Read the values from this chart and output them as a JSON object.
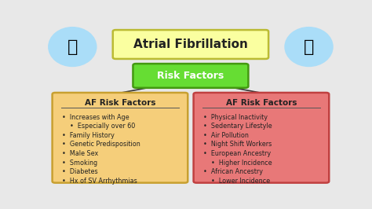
{
  "title": "Atrial Fibrillation",
  "title_box_color": "#FAFFA0",
  "title_box_edge": "#BBBB33",
  "subtitle": "Risk Factors",
  "subtitle_box_color": "#66DD33",
  "subtitle_box_edge": "#449911",
  "background_color": "#E8E8E8",
  "left_box": {
    "title": "AF Risk Factors",
    "bg_color": "#F5CE7A",
    "edge_color": "#C8A030",
    "items": [
      "•  Increases with Age",
      "    •  Especially over 60",
      "•  Family History",
      "•  Genetic Predisposition",
      "•  Male Sex",
      "•  Smoking",
      "•  Diabetes",
      "•  Hx of SV Arrhythmias"
    ]
  },
  "right_box": {
    "title": "AF Risk Factors",
    "bg_color": "#E87878",
    "edge_color": "#C04040",
    "items": [
      "•  Physical Inactivity",
      "•  Sedentary Lifestyle",
      "•  Air Pollution",
      "•  Night Shift Workers",
      "•  European Ancestry",
      "    •  Higher Incidence",
      "•  African Ancestry",
      "    •  Lower Incidence"
    ]
  },
  "heart_ellipse_color": "#AADDF8",
  "heart_color": "#DD2222",
  "line_color": "#333333"
}
